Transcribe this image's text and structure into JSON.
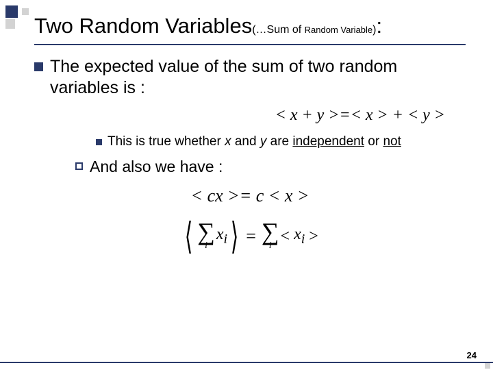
{
  "corner": {
    "accent_color": "#2a3a6a",
    "light_color": "#d3d3d3"
  },
  "title": {
    "main": "Two Random Variables",
    "sub_prefix": "(…Sum of ",
    "sub_small": "Random Variable",
    "sub_suffix": ")",
    "colon": ":"
  },
  "bullet1": "The expected value of the sum of two random variables is :",
  "formula1": "< x + y >=< x > + < y >",
  "bullet2": {
    "p1": "This is true whether ",
    "x": "x",
    "p2": " and ",
    "y": "y",
    "p3": " are ",
    "u1": "independent",
    "p4": " or ",
    "u2": "not"
  },
  "bullet3_prefix": "And",
  "bullet3_rest": " also we have :",
  "formula2": "< cx >= c < x >",
  "formula3": {
    "lhs_open": "⟨",
    "sigma": "∑",
    "sub": "i",
    "xi": "x",
    "xi_sub": "i",
    "rhs_open": "⟨",
    "eq": "=",
    "rhs_sigma": "∑",
    "rhs_sub": "i",
    "rhs_x": "x",
    "rhs_xsub": "i",
    "close": "⟩"
  },
  "page_number": "24"
}
